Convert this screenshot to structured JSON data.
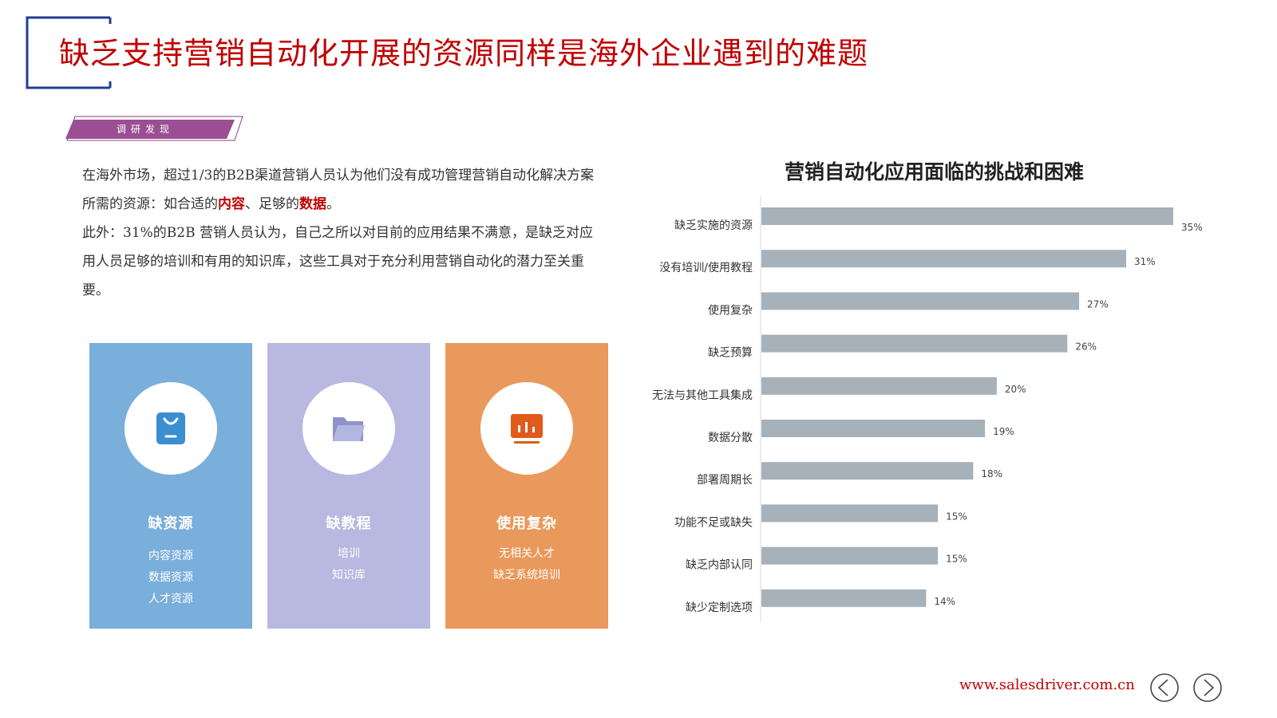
{
  "header": {
    "title": "缺乏支持营销自动化开展的资源同样是海外企业遇到的难题"
  },
  "tag": {
    "label": "调研发现"
  },
  "description": {
    "p1_a": "在海外市场，超过1/3的B2B渠道营销人员认为他们没有成功管理营销自动化解决方案所需的资源：如合适的",
    "p1_hl1": "内容",
    "p1_b": "、足够的",
    "p1_hl2": "数据",
    "p1_c": "。",
    "p2": "此外：31%的B2B 营销人员认为，自己之所以对目前的应用结果不满意，是缺乏对应用人员足够的培训和有用的知识库，这些工具对于充分利用营销自动化的潜力至关重要。"
  },
  "cards": [
    {
      "title": "缺资源",
      "items": [
        "内容资源",
        "数据资源",
        "人才资源"
      ],
      "color": "#7aaedb",
      "icon": "bag-icon"
    },
    {
      "title": "缺教程",
      "items": [
        "培训",
        "知识库"
      ],
      "color": "#b8b8e0",
      "icon": "folder-icon"
    },
    {
      "title": "使用复杂",
      "items": [
        "无相关人才",
        "缺乏系统培训"
      ],
      "color": "#e9995c",
      "icon": "chart-board-icon"
    }
  ],
  "chart_data": {
    "type": "bar",
    "orientation": "horizontal",
    "title": "营销自动化应用面临的挑战和困难",
    "categories": [
      "缺乏实施的资源",
      "没有培训/使用教程",
      "使用复杂",
      "缺乏预算",
      "无法与其他工具集成",
      "数据分散",
      "部署周期长",
      "功能不足或缺失",
      "缺乏内部认同",
      "缺少定制选项"
    ],
    "values": [
      35,
      31,
      27,
      26,
      20,
      19,
      18,
      15,
      15,
      14
    ],
    "value_labels": [
      "35%",
      "31%",
      "27%",
      "26%",
      "20%",
      "19%",
      "18%",
      "15%",
      "15%",
      "14%"
    ],
    "xlim": [
      0,
      35
    ],
    "grid": false,
    "bar_color": "#a6b1ba"
  },
  "footer": {
    "url": "www.salesdriver.com.cn"
  }
}
